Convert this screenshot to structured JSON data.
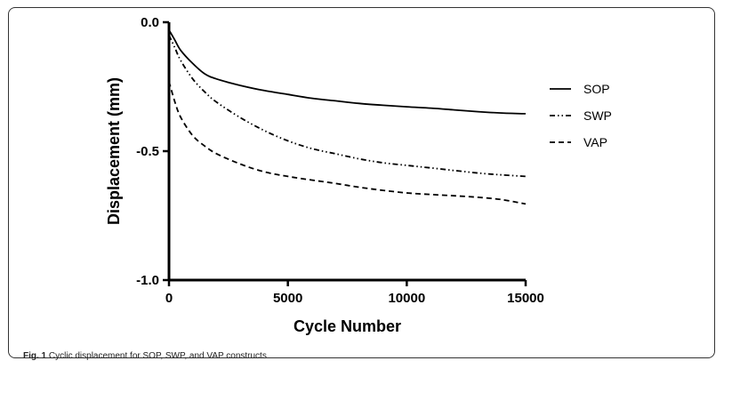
{
  "caption": {
    "label": "Fig. 1",
    "text": "Cyclic displacement for SOP, SWP, and VAP constructs"
  },
  "chart_data": {
    "type": "line",
    "xlabel": "Cycle Number",
    "ylabel": "Displacement (mm)",
    "xlim": [
      0,
      15000
    ],
    "ylim": [
      -1.0,
      0.0
    ],
    "xticks": [
      0,
      5000,
      10000,
      15000
    ],
    "xtick_labels": [
      "0",
      "5000",
      "10000",
      "15000"
    ],
    "yticks": [
      0.0,
      -0.5,
      -1.0
    ],
    "ytick_labels": [
      "0.0",
      "-0.5",
      "-1.0"
    ],
    "grid": false,
    "legend_position": "right",
    "series": [
      {
        "name": "SOP",
        "style": "solid",
        "x": [
          0,
          250,
          500,
          1000,
          1500,
          2000,
          3000,
          4000,
          5000,
          6000,
          7000,
          8000,
          9000,
          10000,
          11000,
          12000,
          13000,
          14000,
          15000
        ],
        "y": [
          -0.03,
          -0.07,
          -0.11,
          -0.16,
          -0.2,
          -0.22,
          -0.245,
          -0.265,
          -0.28,
          -0.295,
          -0.305,
          -0.315,
          -0.322,
          -0.328,
          -0.333,
          -0.34,
          -0.347,
          -0.352,
          -0.355
        ]
      },
      {
        "name": "SWP",
        "style": "dash-dot-dot",
        "x": [
          0,
          250,
          500,
          1000,
          1500,
          2000,
          3000,
          4000,
          5000,
          6000,
          7000,
          8000,
          9000,
          10000,
          11000,
          12000,
          13000,
          14000,
          15000
        ],
        "y": [
          -0.05,
          -0.1,
          -0.15,
          -0.22,
          -0.27,
          -0.31,
          -0.37,
          -0.42,
          -0.46,
          -0.49,
          -0.51,
          -0.53,
          -0.545,
          -0.555,
          -0.565,
          -0.575,
          -0.585,
          -0.592,
          -0.598
        ]
      },
      {
        "name": "VAP",
        "style": "dashed",
        "x": [
          0,
          250,
          500,
          1000,
          1500,
          2000,
          3000,
          4000,
          5000,
          6000,
          7000,
          8000,
          9000,
          10000,
          11000,
          12000,
          13000,
          14000,
          15000
        ],
        "y": [
          -0.23,
          -0.31,
          -0.37,
          -0.44,
          -0.48,
          -0.51,
          -0.55,
          -0.58,
          -0.598,
          -0.612,
          -0.625,
          -0.64,
          -0.652,
          -0.662,
          -0.668,
          -0.673,
          -0.679,
          -0.688,
          -0.705
        ]
      }
    ]
  }
}
